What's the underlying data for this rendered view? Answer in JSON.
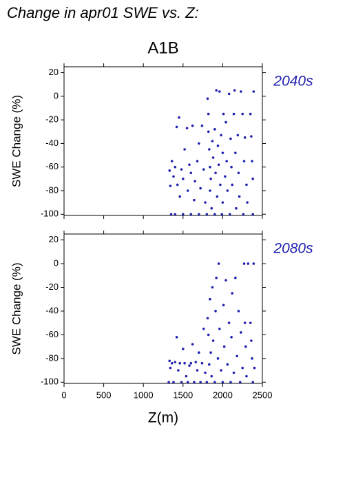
{
  "heading": "Change in apr01 SWE vs. Z:",
  "chart_data": [
    {
      "type": "scatter",
      "title": "A1B",
      "annotation": "2040s",
      "ylabel": "SWE Change (%)",
      "color": "#2020b0",
      "xlim": [
        0,
        2500
      ],
      "xticks": [
        0,
        500,
        1000,
        1500,
        2000,
        2500
      ],
      "ylim": [
        -101,
        25
      ],
      "yticks": [
        20,
        0,
        -20,
        -40,
        -60,
        -80,
        -100
      ],
      "x": [
        1330,
        1340,
        1350,
        1360,
        1380,
        1400,
        1400,
        1420,
        1430,
        1450,
        1460,
        1480,
        1500,
        1500,
        1520,
        1550,
        1560,
        1580,
        1600,
        1600,
        1620,
        1640,
        1650,
        1680,
        1700,
        1700,
        1720,
        1740,
        1760,
        1780,
        1800,
        1810,
        1820,
        1820,
        1830,
        1840,
        1840,
        1850,
        1860,
        1870,
        1880,
        1900,
        1900,
        1910,
        1920,
        1930,
        1940,
        1950,
        1960,
        1970,
        1980,
        1990,
        2000,
        2000,
        2010,
        2030,
        2040,
        2050,
        2060,
        2080,
        2090,
        2100,
        2110,
        2120,
        2140,
        2150,
        2160,
        2170,
        2190,
        2200,
        2210,
        2230,
        2250,
        2260,
        2270,
        2280,
        2300,
        2310,
        2350,
        2360,
        2370,
        2380,
        2380,
        2390
      ],
      "values": [
        -63,
        -76,
        -100,
        -55,
        -68,
        -100,
        -60,
        -26,
        -75,
        -18,
        -85,
        -62,
        -100,
        -70,
        -45,
        -27,
        -80,
        -58,
        -100,
        -65,
        -25,
        -88,
        -72,
        -55,
        -100,
        -40,
        -78,
        -25,
        -62,
        -90,
        -100,
        -2,
        -15,
        -30,
        -45,
        -60,
        -80,
        -70,
        -95,
        -38,
        -52,
        -100,
        -28,
        -65,
        5,
        -85,
        -42,
        -58,
        4,
        -75,
        -33,
        -100,
        -48,
        -90,
        -15,
        -68,
        -22,
        -55,
        -80,
        2,
        -100,
        -36,
        -60,
        -75,
        -15,
        5,
        -48,
        -95,
        -33,
        -65,
        -85,
        4,
        -15,
        -100,
        -55,
        -35,
        -75,
        -90,
        -15,
        -34,
        -55,
        -70,
        -100,
        4
      ]
    },
    {
      "type": "scatter",
      "annotation": "2080s",
      "ylabel": "SWE Change (%)",
      "xlabel": "Z(m)",
      "color": "#2020b0",
      "xlim": [
        0,
        2500
      ],
      "xticks": [
        0,
        500,
        1000,
        1500,
        2000,
        2500
      ],
      "ylim": [
        -101,
        25
      ],
      "yticks": [
        20,
        0,
        -20,
        -40,
        -60,
        -80,
        -100
      ],
      "x": [
        1320,
        1330,
        1340,
        1360,
        1380,
        1400,
        1420,
        1440,
        1460,
        1480,
        1500,
        1520,
        1540,
        1560,
        1580,
        1600,
        1620,
        1640,
        1660,
        1680,
        1700,
        1720,
        1740,
        1760,
        1780,
        1800,
        1810,
        1820,
        1830,
        1840,
        1850,
        1860,
        1870,
        1880,
        1900,
        1910,
        1920,
        1940,
        1950,
        1960,
        1980,
        2000,
        2010,
        2020,
        2040,
        2060,
        2080,
        2100,
        2110,
        2120,
        2140,
        2160,
        2180,
        2200,
        2220,
        2230,
        2250,
        2270,
        2280,
        2290,
        2300,
        2320,
        2350,
        2360,
        2370,
        2380,
        2390,
        2400
      ],
      "values": [
        -100,
        -82,
        -88,
        -84,
        -100,
        -83,
        -62,
        -90,
        -84,
        -100,
        -72,
        -84,
        -95,
        -100,
        -86,
        -84,
        -68,
        -100,
        -83,
        -90,
        -75,
        -100,
        -84,
        -55,
        -92,
        -100,
        -46,
        -60,
        -85,
        -30,
        -75,
        -95,
        -20,
        -65,
        -100,
        -40,
        -12,
        -80,
        0,
        -55,
        -90,
        -100,
        -35,
        -70,
        -14,
        -85,
        -50,
        -100,
        -62,
        -25,
        -92,
        -12,
        -78,
        -40,
        -100,
        -58,
        -88,
        0,
        -50,
        -70,
        -95,
        0,
        -50,
        -65,
        -80,
        -100,
        0,
        -88
      ]
    }
  ]
}
